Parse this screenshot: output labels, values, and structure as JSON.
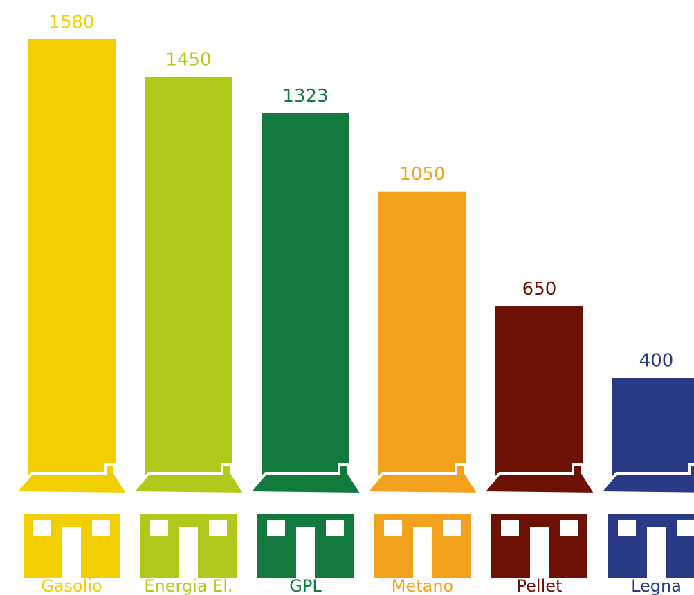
{
  "chart_data": {
    "type": "bar",
    "categories": [
      "Gasolio",
      "Energia El.",
      "GPL",
      "Metano",
      "Pellet",
      "Legna"
    ],
    "values": [
      1580,
      1450,
      1323,
      1050,
      650,
      400
    ],
    "colors": [
      "#f2cf00",
      "#b0c91b",
      "#137a3e",
      "#f4a11e",
      "#6b1205",
      "#2b3a87"
    ]
  }
}
